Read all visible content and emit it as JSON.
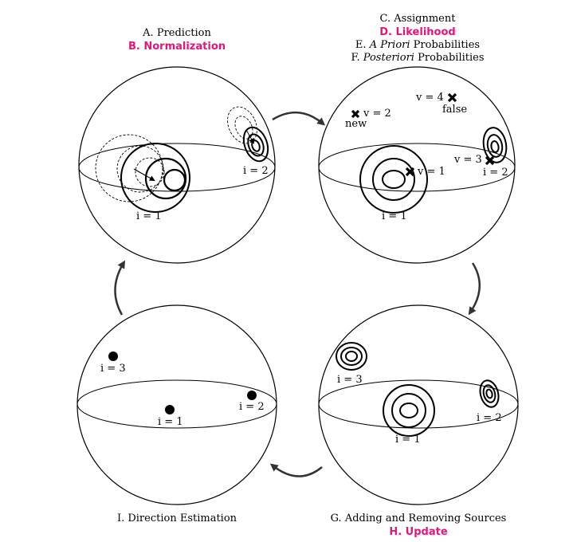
{
  "panels": {
    "prediction": {
      "step_a": "A. Prediction",
      "step_b": "B. Normalization",
      "source_1": "i = 1",
      "source_2": "i = 2"
    },
    "assignment": {
      "step_c": "C. Assignment",
      "step_d": "D. Likelihood",
      "step_e_prefix": "E.",
      "step_e_italic": "A Priori",
      "step_e_suffix": "Probabilities",
      "step_f_prefix": "F.",
      "step_f_italic": "Posteriori",
      "step_f_suffix": "Probabilities",
      "obs_new": "v = 2",
      "obs_new_tag": "new",
      "obs_false": "v = 4",
      "obs_false_tag": "false",
      "obs_1": "v = 1",
      "obs_3": "v = 3",
      "source_1": "i = 1",
      "source_2": "i = 2"
    },
    "update": {
      "step_g": "G. Adding and Removing Sources",
      "step_h": "H. Update",
      "source_1": "i = 1",
      "source_2": "i = 2",
      "source_3": "i = 3"
    },
    "estimation": {
      "step_i": "I. Direction Estimation",
      "source_1": "i = 1",
      "source_2": "i = 2",
      "source_3": "i = 3"
    }
  },
  "colors": {
    "highlight": "#e4157e",
    "ink": "#000000",
    "arrow": "#333333"
  }
}
